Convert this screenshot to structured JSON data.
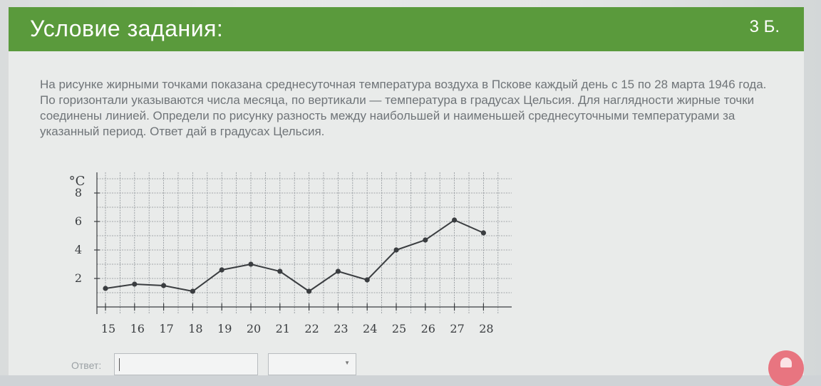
{
  "header": {
    "title": "Условие задания:",
    "points": "3 Б."
  },
  "task": {
    "text": "На рисунке жирными точками показана среднесуточная температура воздуха в Пскове каждый день с 15 по 28 марта 1946 года. По горизонтали указываются числа месяца, по вертикали — температура в градусах Цельсия. Для наглядности жирные точки соединены линией. Определи по рисунку разность между наибольшей и наименьшей среднесуточными температурами за указанный период. Ответ дай в градусах Цельсия."
  },
  "chart_data": {
    "type": "line",
    "title": "",
    "xlabel": "",
    "ylabel": "°C",
    "x": [
      15,
      16,
      17,
      18,
      19,
      20,
      21,
      22,
      23,
      24,
      25,
      26,
      27,
      28
    ],
    "y": [
      1.3,
      1.6,
      1.5,
      1.1,
      2.6,
      3.0,
      2.5,
      1.1,
      2.5,
      1.9,
      4.0,
      4.7,
      6.1,
      5.2
    ],
    "yticks": [
      2,
      4,
      6,
      8
    ],
    "xlim": [
      15,
      28.5
    ],
    "ylim": [
      0,
      9
    ],
    "grid": true,
    "color": "#3a3d40"
  },
  "answer": {
    "label": "Ответ:",
    "value": "",
    "unit_selected": ""
  },
  "colors": {
    "header": "#5a9a3c",
    "text": "#6f7478",
    "button": "#e87580"
  }
}
